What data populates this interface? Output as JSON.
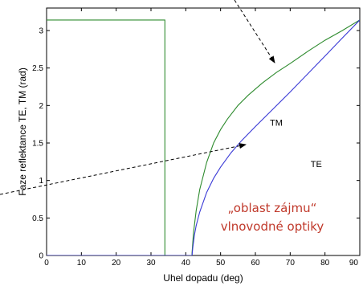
{
  "chart_data": {
    "type": "line",
    "title": "",
    "xlabel": "Uhel dopadu (deg)",
    "ylabel": "Faze reflektance TE, TM (rad)",
    "xlim": [
      0,
      90
    ],
    "ylim": [
      0,
      3.3
    ],
    "x_ticks": [
      0,
      10,
      20,
      30,
      40,
      50,
      60,
      70,
      80,
      90
    ],
    "y_ticks": [
      0,
      0.5,
      1,
      1.5,
      2,
      2.5,
      3
    ],
    "x_tick_labels": [
      "0",
      "10",
      "20",
      "30",
      "40",
      "50",
      "60",
      "70",
      "80",
      "90"
    ],
    "y_tick_labels": [
      "0",
      "0.5",
      "1",
      "1.5",
      "2",
      "2.5",
      "3"
    ],
    "grid": false,
    "series": [
      {
        "name": "TM",
        "color": "#2e8b2e",
        "x": [
          0,
          34,
          34,
          41.8,
          41.8,
          42.2,
          43,
          44,
          46,
          48,
          50,
          52,
          55,
          58,
          62,
          66,
          70,
          75,
          80,
          85,
          90
        ],
        "y": [
          3.14,
          3.14,
          0,
          0,
          0.03,
          0.3,
          0.6,
          0.88,
          1.24,
          1.5,
          1.68,
          1.82,
          2.0,
          2.14,
          2.3,
          2.44,
          2.56,
          2.72,
          2.87,
          3.0,
          3.14
        ]
      },
      {
        "name": "TE",
        "color": "#3a3ad6",
        "x": [
          0,
          41.8,
          42,
          42.5,
          43,
          44,
          46,
          48,
          50,
          53,
          56,
          60,
          65,
          70,
          75,
          80,
          85,
          90
        ],
        "y": [
          0,
          0,
          0.1,
          0.28,
          0.4,
          0.58,
          0.84,
          1.03,
          1.18,
          1.37,
          1.53,
          1.72,
          1.95,
          2.18,
          2.42,
          2.66,
          2.9,
          3.14
        ]
      }
    ],
    "labels": [
      {
        "text": "TM",
        "x": 66,
        "y": 1.73
      },
      {
        "text": "TE",
        "x": 77.5,
        "y": 1.18
      }
    ],
    "annotation": {
      "line1": "„oblast zájmu“",
      "line2": "vlnovodné optiky"
    }
  }
}
